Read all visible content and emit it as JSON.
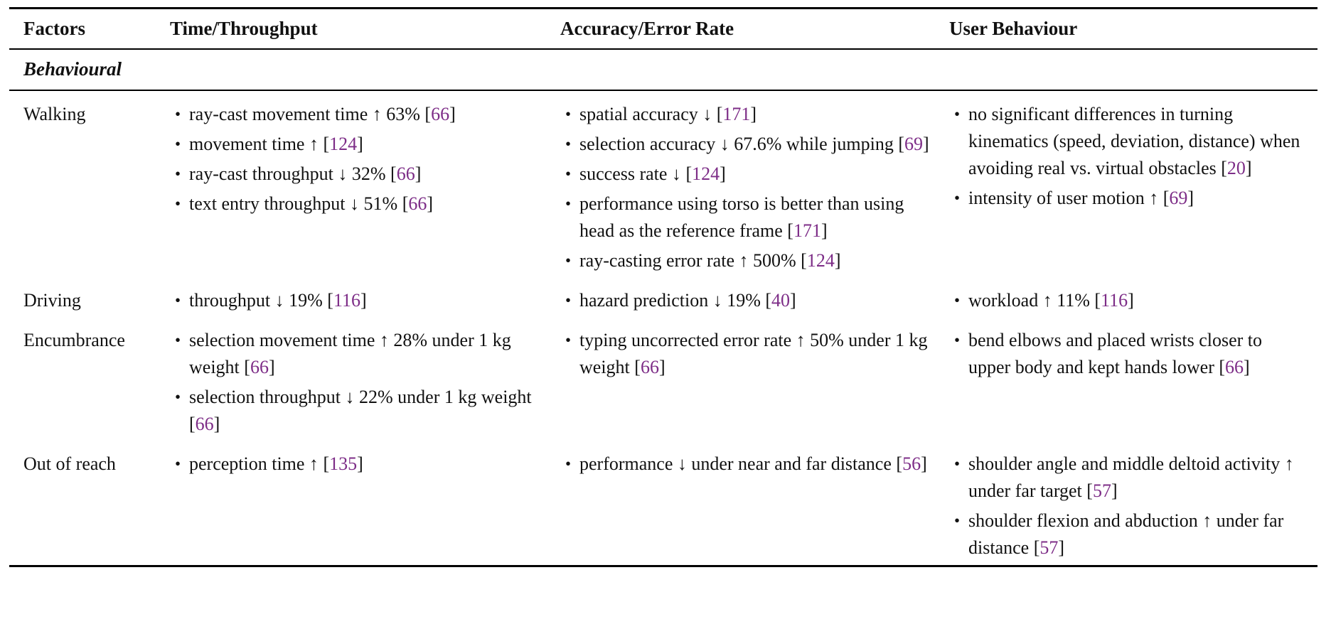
{
  "colors": {
    "citation": "#7d2d87",
    "text": "#111111",
    "rule": "#000000"
  },
  "table": {
    "headers": [
      {
        "label": "Factors"
      },
      {
        "label": "Time/Throughput"
      },
      {
        "label": "Accuracy/Error Rate"
      },
      {
        "label": "User Behaviour"
      }
    ],
    "section_label": "Behavioural",
    "rows": [
      {
        "factor": "Walking",
        "cells": [
          [
            [
              {
                "t": "ray-cast movement time ↑ 63% "
              },
              {
                "cite": "66"
              }
            ],
            [
              {
                "t": "movement time ↑ "
              },
              {
                "cite": "124"
              }
            ],
            [
              {
                "t": "ray-cast throughput ↓ 32% "
              },
              {
                "cite": "66"
              }
            ],
            [
              {
                "t": "text entry throughput ↓ 51% "
              },
              {
                "cite": "66"
              }
            ]
          ],
          [
            [
              {
                "t": "spatial accuracy ↓ "
              },
              {
                "cite": "171"
              }
            ],
            [
              {
                "t": "selection accuracy ↓ 67.6% while jumping "
              },
              {
                "cite": "69"
              }
            ],
            [
              {
                "t": "success rate ↓ "
              },
              {
                "cite": "124"
              }
            ],
            [
              {
                "t": "performance using torso is better than using head as the reference frame "
              },
              {
                "cite": "171"
              }
            ],
            [
              {
                "t": "ray-casting error rate ↑ 500% "
              },
              {
                "cite": "124"
              }
            ]
          ],
          [
            [
              {
                "t": "no significant differences in turning kinematics (speed, deviation, distance) when avoiding real vs. virtual obstacles "
              },
              {
                "cite": "20"
              }
            ],
            [
              {
                "t": "intensity of user motion ↑ "
              },
              {
                "cite": "69"
              }
            ]
          ]
        ]
      },
      {
        "factor": "Driving",
        "cells": [
          [
            [
              {
                "t": "throughput ↓ 19% "
              },
              {
                "cite": "116"
              }
            ]
          ],
          [
            [
              {
                "t": "hazard prediction ↓ 19% "
              },
              {
                "cite": "40"
              }
            ]
          ],
          [
            [
              {
                "t": "workload ↑ 11% "
              },
              {
                "cite": "116"
              }
            ]
          ]
        ]
      },
      {
        "factor": "Encumbrance",
        "cells": [
          [
            [
              {
                "t": "selection movement time ↑ 28% under 1 kg weight "
              },
              {
                "cite": "66"
              }
            ],
            [
              {
                "t": "selection throughput ↓ 22% under 1 kg weight "
              },
              {
                "cite": "66"
              }
            ]
          ],
          [
            [
              {
                "t": "typing uncorrected error rate ↑ 50% under 1 kg weight "
              },
              {
                "cite": "66"
              }
            ]
          ],
          [
            [
              {
                "t": "bend elbows and placed wrists closer to upper body and kept hands lower "
              },
              {
                "cite": "66"
              }
            ]
          ]
        ]
      },
      {
        "factor": "Out of reach",
        "cells": [
          [
            [
              {
                "t": "perception time ↑ "
              },
              {
                "cite": "135"
              }
            ]
          ],
          [
            [
              {
                "t": "performance ↓ under near and far distance "
              },
              {
                "cite": "56"
              }
            ]
          ],
          [
            [
              {
                "t": "shoulder angle and middle deltoid activity ↑ under far target "
              },
              {
                "cite": "57"
              }
            ],
            [
              {
                "t": "shoulder flexion and abduction ↑ under far distance "
              },
              {
                "cite": "57"
              }
            ]
          ]
        ]
      }
    ]
  }
}
